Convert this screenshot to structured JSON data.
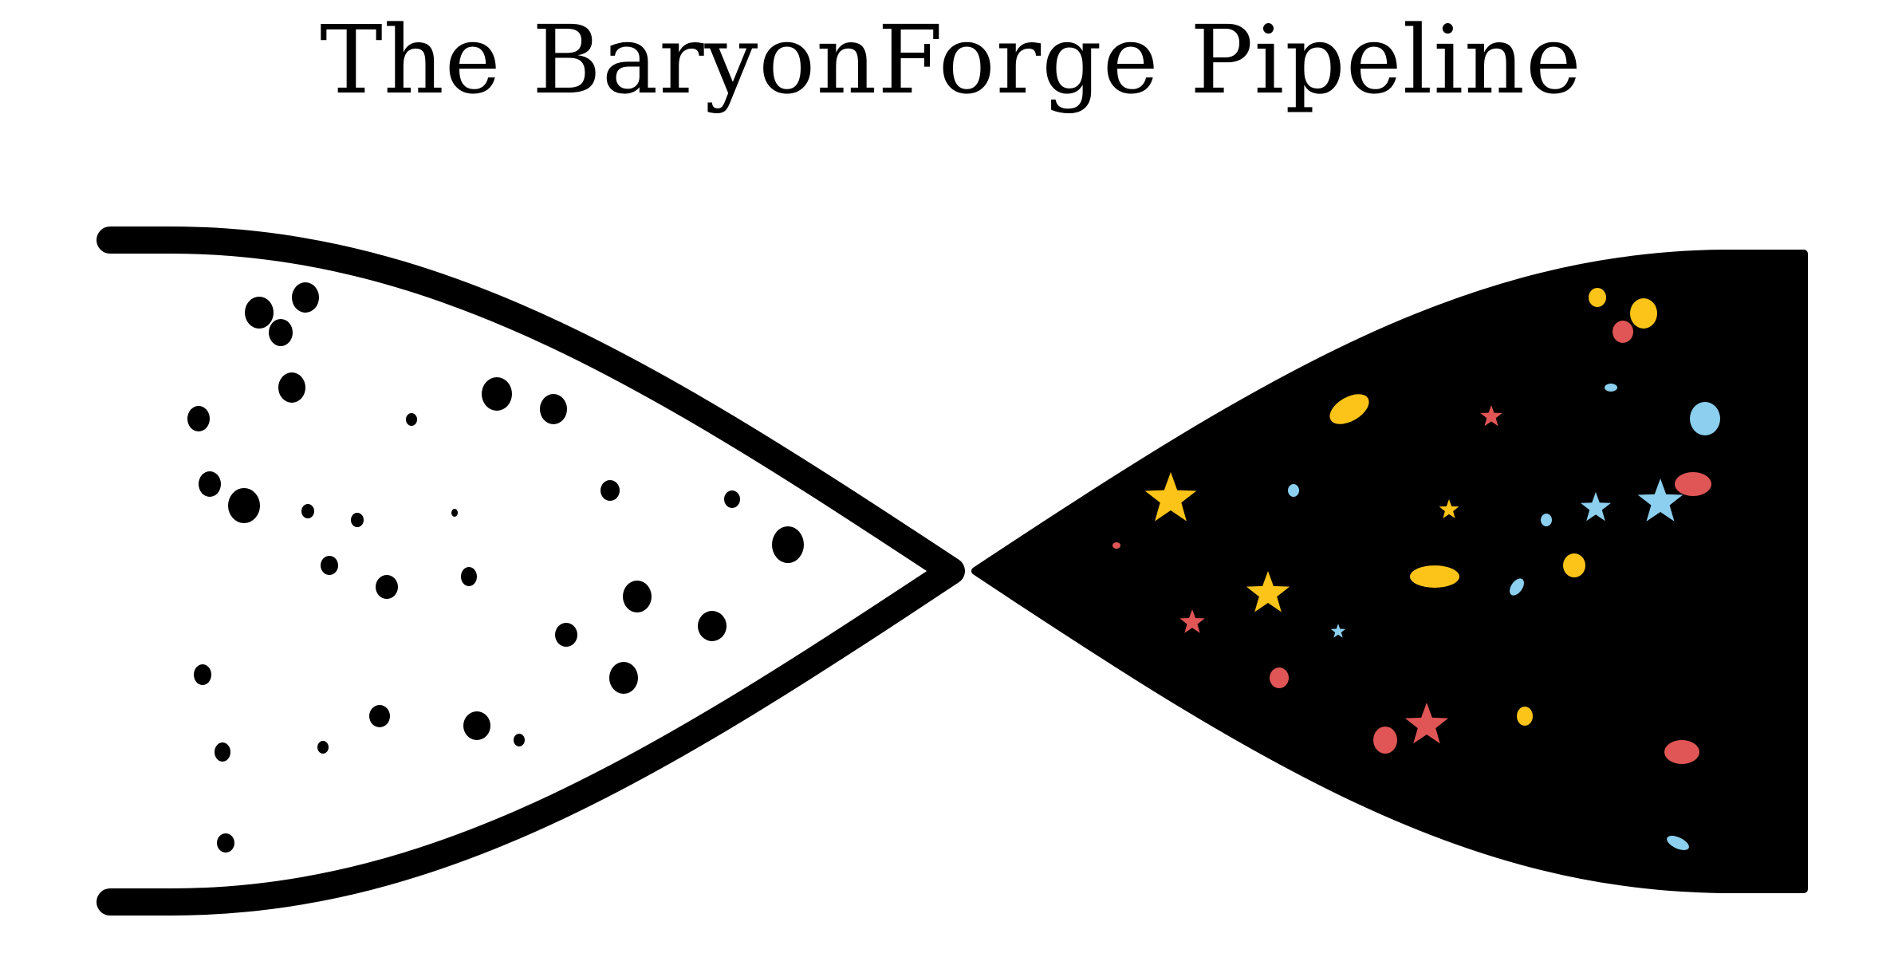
{
  "title": "The BaryonForge Pipeline",
  "colors": {
    "ink": "#000000",
    "background": "#ffffff",
    "star_yellow": "#fcc419",
    "star_red": "#e05555",
    "star_blue": "#8ccfee"
  },
  "left_funnel": {
    "description_role": "input dark-matter particles",
    "style": "outlined",
    "particle_color": "#000000",
    "particle_count": 33
  },
  "right_funnel": {
    "style": "filled",
    "fill_color": "#000000",
    "element_kinds": [
      "star",
      "galaxy-blob"
    ],
    "star_count": 11,
    "blob_count": 25
  }
}
